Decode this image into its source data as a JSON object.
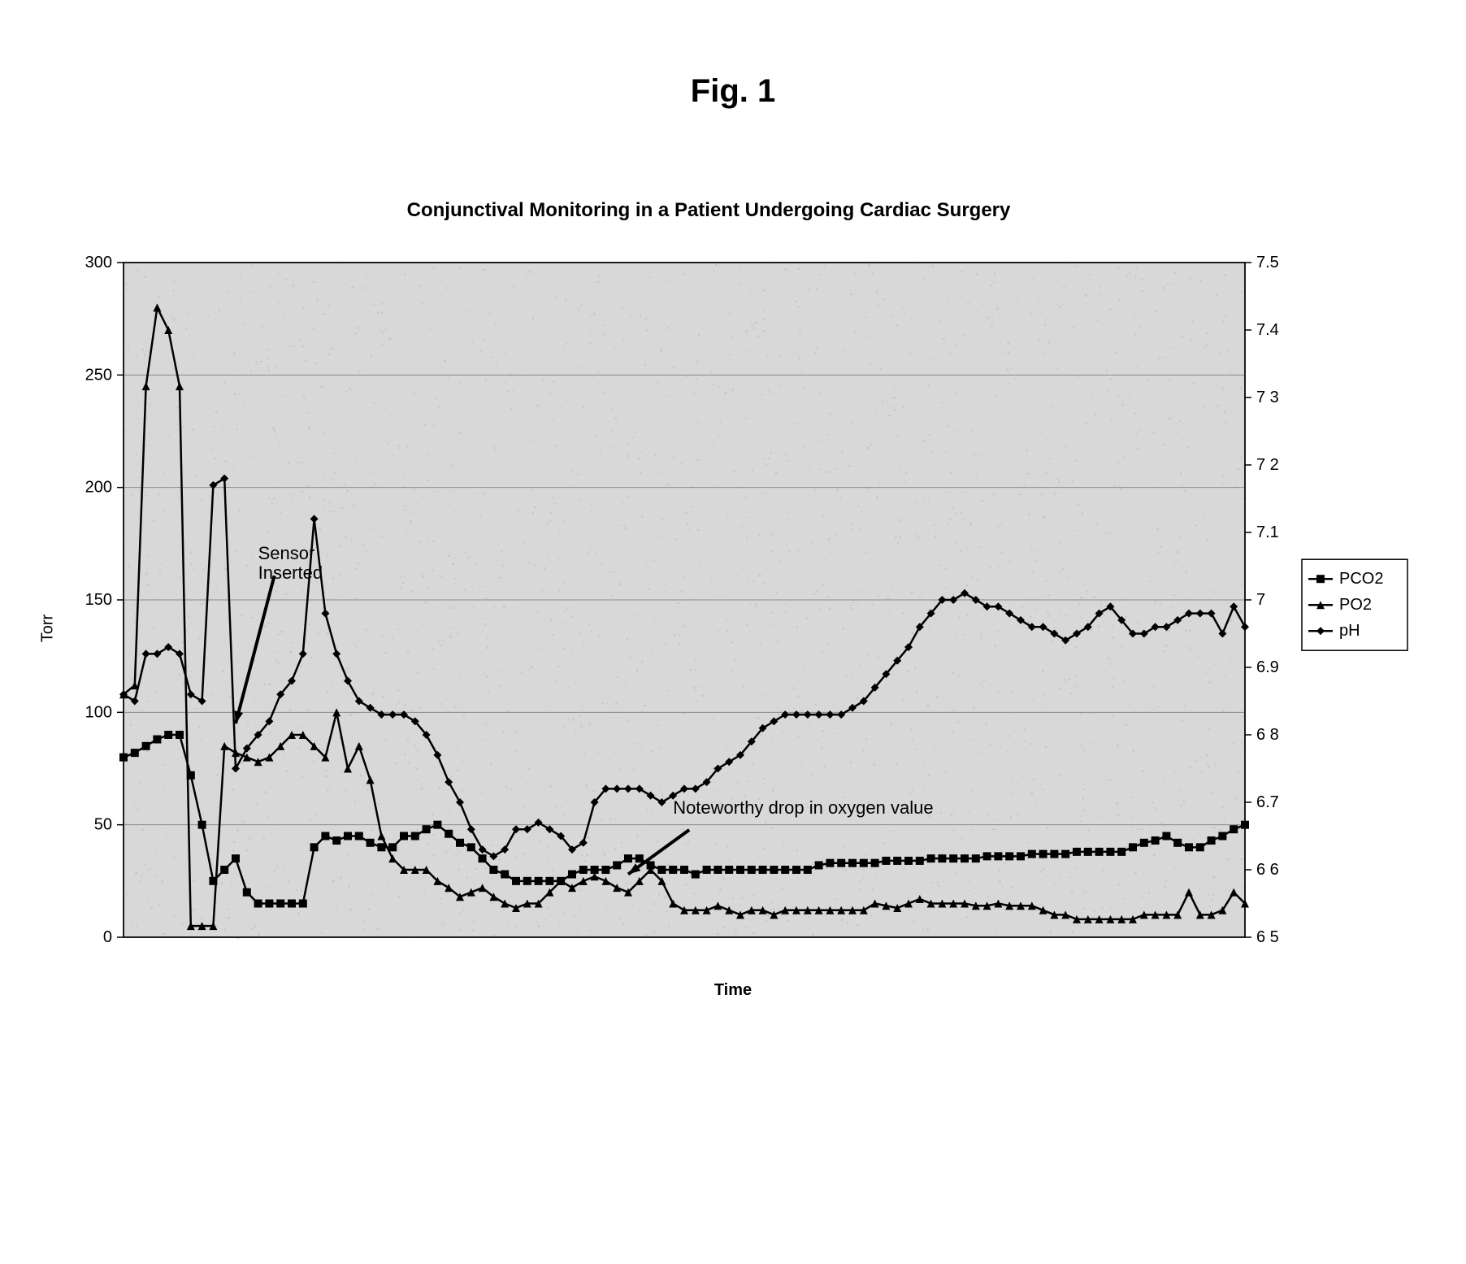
{
  "figure_label": "Fig. 1",
  "chart": {
    "type": "line",
    "title": "Conjunctival Monitoring in a Patient Undergoing Cardiac Surgery",
    "xaxis": {
      "label": "Time",
      "min": 0,
      "max": 100
    },
    "yaxis_left": {
      "label": "Torr",
      "min": 0,
      "max": 300,
      "tick_step": 50,
      "ticks": [
        0,
        50,
        100,
        150,
        200,
        250,
        300
      ]
    },
    "yaxis_right": {
      "label": "",
      "min": 6.5,
      "max": 7.5,
      "tick_step": 0.1,
      "ticks": [
        6.5,
        6.6,
        6.7,
        6.8,
        6.9,
        7.0,
        7.1,
        7.2,
        7.3,
        7.4,
        7.5
      ],
      "tick_labels": [
        "6 5",
        "6 6",
        "6.7",
        "6 8",
        "6.9",
        "7",
        "7.1",
        "7 2",
        "7 3",
        "7.4",
        "7.5"
      ]
    },
    "background_color": "#d8d8d8",
    "plot_noise_color": "#b9b9b9",
    "grid_color": "#8a8a8a",
    "border_color": "#000000",
    "line_width": 2.5,
    "marker_size": 5,
    "legend": {
      "position": "right",
      "box_border": "#000000",
      "box_fill": "#ffffff",
      "text_color": "#000000",
      "fontsize": 20
    },
    "annotations": [
      {
        "id": "sensor-inserted",
        "lines": [
          "Sensor",
          "Inserted"
        ],
        "x": 12,
        "y_torr": 168,
        "arrow_to": {
          "x": 10,
          "y_torr": 95
        }
      },
      {
        "id": "oxygen-drop",
        "text": "Noteworthy drop in oxygen value",
        "x": 49,
        "y_torr": 55,
        "arrow_to": {
          "x": 45,
          "y_torr": 28
        }
      }
    ],
    "series": [
      {
        "name": "PCO2",
        "axis": "left",
        "color": "#000000",
        "marker": "square",
        "data": [
          [
            0,
            80
          ],
          [
            1,
            82
          ],
          [
            2,
            85
          ],
          [
            3,
            88
          ],
          [
            4,
            90
          ],
          [
            5,
            90
          ],
          [
            6,
            72
          ],
          [
            7,
            50
          ],
          [
            8,
            25
          ],
          [
            9,
            30
          ],
          [
            10,
            35
          ],
          [
            11,
            20
          ],
          [
            12,
            15
          ],
          [
            13,
            15
          ],
          [
            14,
            15
          ],
          [
            15,
            15
          ],
          [
            16,
            15
          ],
          [
            17,
            40
          ],
          [
            18,
            45
          ],
          [
            19,
            43
          ],
          [
            20,
            45
          ],
          [
            21,
            45
          ],
          [
            22,
            42
          ],
          [
            23,
            40
          ],
          [
            24,
            40
          ],
          [
            25,
            45
          ],
          [
            26,
            45
          ],
          [
            27,
            48
          ],
          [
            28,
            50
          ],
          [
            29,
            46
          ],
          [
            30,
            42
          ],
          [
            31,
            40
          ],
          [
            32,
            35
          ],
          [
            33,
            30
          ],
          [
            34,
            28
          ],
          [
            35,
            25
          ],
          [
            36,
            25
          ],
          [
            37,
            25
          ],
          [
            38,
            25
          ],
          [
            39,
            25
          ],
          [
            40,
            28
          ],
          [
            41,
            30
          ],
          [
            42,
            30
          ],
          [
            43,
            30
          ],
          [
            44,
            32
          ],
          [
            45,
            35
          ],
          [
            46,
            35
          ],
          [
            47,
            32
          ],
          [
            48,
            30
          ],
          [
            49,
            30
          ],
          [
            50,
            30
          ],
          [
            51,
            28
          ],
          [
            52,
            30
          ],
          [
            53,
            30
          ],
          [
            54,
            30
          ],
          [
            55,
            30
          ],
          [
            56,
            30
          ],
          [
            57,
            30
          ],
          [
            58,
            30
          ],
          [
            59,
            30
          ],
          [
            60,
            30
          ],
          [
            61,
            30
          ],
          [
            62,
            32
          ],
          [
            63,
            33
          ],
          [
            64,
            33
          ],
          [
            65,
            33
          ],
          [
            66,
            33
          ],
          [
            67,
            33
          ],
          [
            68,
            34
          ],
          [
            69,
            34
          ],
          [
            70,
            34
          ],
          [
            71,
            34
          ],
          [
            72,
            35
          ],
          [
            73,
            35
          ],
          [
            74,
            35
          ],
          [
            75,
            35
          ],
          [
            76,
            35
          ],
          [
            77,
            36
          ],
          [
            78,
            36
          ],
          [
            79,
            36
          ],
          [
            80,
            36
          ],
          [
            81,
            37
          ],
          [
            82,
            37
          ],
          [
            83,
            37
          ],
          [
            84,
            37
          ],
          [
            85,
            38
          ],
          [
            86,
            38
          ],
          [
            87,
            38
          ],
          [
            88,
            38
          ],
          [
            89,
            38
          ],
          [
            90,
            40
          ],
          [
            91,
            42
          ],
          [
            92,
            43
          ],
          [
            93,
            45
          ],
          [
            94,
            42
          ],
          [
            95,
            40
          ],
          [
            96,
            40
          ],
          [
            97,
            43
          ],
          [
            98,
            45
          ],
          [
            99,
            48
          ],
          [
            100,
            50
          ]
        ]
      },
      {
        "name": "PO2",
        "axis": "left",
        "color": "#000000",
        "marker": "triangle",
        "data": [
          [
            0,
            108
          ],
          [
            1,
            112
          ],
          [
            2,
            245
          ],
          [
            3,
            280
          ],
          [
            4,
            270
          ],
          [
            5,
            245
          ],
          [
            6,
            5
          ],
          [
            7,
            5
          ],
          [
            8,
            5
          ],
          [
            9,
            85
          ],
          [
            10,
            82
          ],
          [
            11,
            80
          ],
          [
            12,
            78
          ],
          [
            13,
            80
          ],
          [
            14,
            85
          ],
          [
            15,
            90
          ],
          [
            16,
            90
          ],
          [
            17,
            85
          ],
          [
            18,
            80
          ],
          [
            19,
            100
          ],
          [
            20,
            75
          ],
          [
            21,
            85
          ],
          [
            22,
            70
          ],
          [
            23,
            45
          ],
          [
            24,
            35
          ],
          [
            25,
            30
          ],
          [
            26,
            30
          ],
          [
            27,
            30
          ],
          [
            28,
            25
          ],
          [
            29,
            22
          ],
          [
            30,
            18
          ],
          [
            31,
            20
          ],
          [
            32,
            22
          ],
          [
            33,
            18
          ],
          [
            34,
            15
          ],
          [
            35,
            13
          ],
          [
            36,
            15
          ],
          [
            37,
            15
          ],
          [
            38,
            20
          ],
          [
            39,
            25
          ],
          [
            40,
            22
          ],
          [
            41,
            25
          ],
          [
            42,
            27
          ],
          [
            43,
            25
          ],
          [
            44,
            22
          ],
          [
            45,
            20
          ],
          [
            46,
            25
          ],
          [
            47,
            30
          ],
          [
            48,
            25
          ],
          [
            49,
            15
          ],
          [
            50,
            12
          ],
          [
            51,
            12
          ],
          [
            52,
            12
          ],
          [
            53,
            14
          ],
          [
            54,
            12
          ],
          [
            55,
            10
          ],
          [
            56,
            12
          ],
          [
            57,
            12
          ],
          [
            58,
            10
          ],
          [
            59,
            12
          ],
          [
            60,
            12
          ],
          [
            61,
            12
          ],
          [
            62,
            12
          ],
          [
            63,
            12
          ],
          [
            64,
            12
          ],
          [
            65,
            12
          ],
          [
            66,
            12
          ],
          [
            67,
            15
          ],
          [
            68,
            14
          ],
          [
            69,
            13
          ],
          [
            70,
            15
          ],
          [
            71,
            17
          ],
          [
            72,
            15
          ],
          [
            73,
            15
          ],
          [
            74,
            15
          ],
          [
            75,
            15
          ],
          [
            76,
            14
          ],
          [
            77,
            14
          ],
          [
            78,
            15
          ],
          [
            79,
            14
          ],
          [
            80,
            14
          ],
          [
            81,
            14
          ],
          [
            82,
            12
          ],
          [
            83,
            10
          ],
          [
            84,
            10
          ],
          [
            85,
            8
          ],
          [
            86,
            8
          ],
          [
            87,
            8
          ],
          [
            88,
            8
          ],
          [
            89,
            8
          ],
          [
            90,
            8
          ],
          [
            91,
            10
          ],
          [
            92,
            10
          ],
          [
            93,
            10
          ],
          [
            94,
            10
          ],
          [
            95,
            20
          ],
          [
            96,
            10
          ],
          [
            97,
            10
          ],
          [
            98,
            12
          ],
          [
            99,
            20
          ],
          [
            100,
            15
          ]
        ]
      },
      {
        "name": "pH",
        "axis": "right",
        "color": "#000000",
        "marker": "diamond",
        "data": [
          [
            0,
            6.86
          ],
          [
            1,
            6.85
          ],
          [
            2,
            6.92
          ],
          [
            3,
            6.92
          ],
          [
            4,
            6.93
          ],
          [
            5,
            6.92
          ],
          [
            6,
            6.86
          ],
          [
            7,
            6.85
          ],
          [
            8,
            7.17
          ],
          [
            9,
            7.18
          ],
          [
            10,
            6.75
          ],
          [
            11,
            6.78
          ],
          [
            12,
            6.8
          ],
          [
            13,
            6.82
          ],
          [
            14,
            6.86
          ],
          [
            15,
            6.88
          ],
          [
            16,
            6.92
          ],
          [
            17,
            7.12
          ],
          [
            18,
            6.98
          ],
          [
            19,
            6.92
          ],
          [
            20,
            6.88
          ],
          [
            21,
            6.85
          ],
          [
            22,
            6.84
          ],
          [
            23,
            6.83
          ],
          [
            24,
            6.83
          ],
          [
            25,
            6.83
          ],
          [
            26,
            6.82
          ],
          [
            27,
            6.8
          ],
          [
            28,
            6.77
          ],
          [
            29,
            6.73
          ],
          [
            30,
            6.7
          ],
          [
            31,
            6.66
          ],
          [
            32,
            6.63
          ],
          [
            33,
            6.62
          ],
          [
            34,
            6.63
          ],
          [
            35,
            6.66
          ],
          [
            36,
            6.66
          ],
          [
            37,
            6.67
          ],
          [
            38,
            6.66
          ],
          [
            39,
            6.65
          ],
          [
            40,
            6.63
          ],
          [
            41,
            6.64
          ],
          [
            42,
            6.7
          ],
          [
            43,
            6.72
          ],
          [
            44,
            6.72
          ],
          [
            45,
            6.72
          ],
          [
            46,
            6.72
          ],
          [
            47,
            6.71
          ],
          [
            48,
            6.7
          ],
          [
            49,
            6.71
          ],
          [
            50,
            6.72
          ],
          [
            51,
            6.72
          ],
          [
            52,
            6.73
          ],
          [
            53,
            6.75
          ],
          [
            54,
            6.76
          ],
          [
            55,
            6.77
          ],
          [
            56,
            6.79
          ],
          [
            57,
            6.81
          ],
          [
            58,
            6.82
          ],
          [
            59,
            6.83
          ],
          [
            60,
            6.83
          ],
          [
            61,
            6.83
          ],
          [
            62,
            6.83
          ],
          [
            63,
            6.83
          ],
          [
            64,
            6.83
          ],
          [
            65,
            6.84
          ],
          [
            66,
            6.85
          ],
          [
            67,
            6.87
          ],
          [
            68,
            6.89
          ],
          [
            69,
            6.91
          ],
          [
            70,
            6.93
          ],
          [
            71,
            6.96
          ],
          [
            72,
            6.98
          ],
          [
            73,
            7.0
          ],
          [
            74,
            7.0
          ],
          [
            75,
            7.01
          ],
          [
            76,
            7.0
          ],
          [
            77,
            6.99
          ],
          [
            78,
            6.99
          ],
          [
            79,
            6.98
          ],
          [
            80,
            6.97
          ],
          [
            81,
            6.96
          ],
          [
            82,
            6.96
          ],
          [
            83,
            6.95
          ],
          [
            84,
            6.94
          ],
          [
            85,
            6.95
          ],
          [
            86,
            6.96
          ],
          [
            87,
            6.98
          ],
          [
            88,
            6.99
          ],
          [
            89,
            6.97
          ],
          [
            90,
            6.95
          ],
          [
            91,
            6.95
          ],
          [
            92,
            6.96
          ],
          [
            93,
            6.96
          ],
          [
            94,
            6.97
          ],
          [
            95,
            6.98
          ],
          [
            96,
            6.98
          ],
          [
            97,
            6.98
          ],
          [
            98,
            6.95
          ],
          [
            99,
            6.99
          ],
          [
            100,
            6.96
          ]
        ]
      }
    ]
  }
}
